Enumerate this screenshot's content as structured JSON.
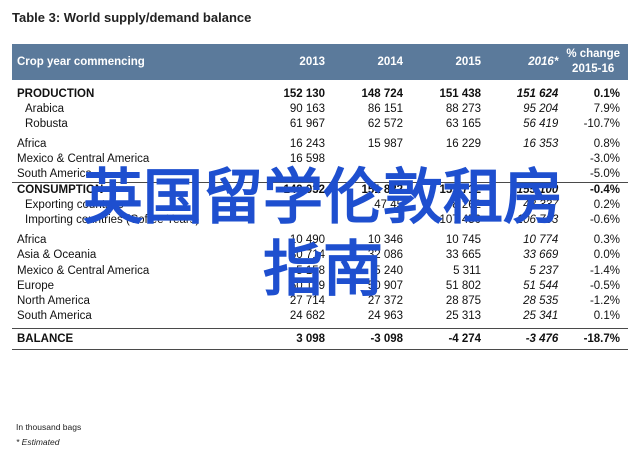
{
  "title": "Table 3: World supply/demand balance",
  "header": {
    "first": "Crop year commencing",
    "cols": [
      "2013",
      "2014",
      "2015",
      "2016*"
    ],
    "pct_line1": "% change",
    "pct_line2": "2015-16"
  },
  "rows": [
    {
      "label": "PRODUCTION",
      "values": [
        "152 130",
        "148 724",
        "151 438",
        "151 624",
        "0.1%"
      ]
    },
    {
      "label": "Arabica",
      "values": [
        "90 163",
        "86 151",
        "88 273",
        "95 204",
        "7.9%"
      ]
    },
    {
      "label": "Robusta",
      "values": [
        "61 967",
        "62 572",
        "63 165",
        "56 419",
        "-10.7%"
      ]
    },
    {
      "label": "Africa",
      "values": [
        "16 243",
        "15 987",
        "16 229",
        "16 353",
        "0.8%"
      ]
    },
    {
      "label": "Mexico & Central America",
      "values": [
        "16 598",
        "",
        "",
        "",
        "-3.0%"
      ]
    },
    {
      "label": "South America",
      "values": [
        "",
        "",
        "",
        "",
        "-5.0%"
      ]
    },
    {
      "label": "CONSUMPTION",
      "values": [
        "149 032",
        "151 822",
        "155 712",
        "155 100",
        "-0.4%"
      ]
    },
    {
      "label": "Exporting countries",
      "values": [
        "",
        "47 45",
        "48 262",
        "48 337",
        "0.2%"
      ]
    },
    {
      "label": "Importing countries (Coffee Years)",
      "values": [
        "",
        "",
        "107 450",
        "106 763",
        "-0.6%"
      ]
    },
    {
      "label": "Africa",
      "values": [
        "10 490",
        "10 346",
        "10 745",
        "10 774",
        "0.3%"
      ]
    },
    {
      "label": "Asia & Oceania",
      "values": [
        "30 714",
        "32 086",
        "33 665",
        "33 669",
        "0.0%"
      ]
    },
    {
      "label": "Mexico & Central America",
      "values": [
        "5 158",
        "5 240",
        "5 311",
        "5 237",
        "-1.4%"
      ]
    },
    {
      "label": "Europe",
      "values": [
        "50 169",
        "50 907",
        "51 802",
        "51 544",
        "-0.5%"
      ]
    },
    {
      "label": "North America",
      "values": [
        "27 714",
        "27 372",
        "28 875",
        "28 535",
        "-1.2%"
      ]
    },
    {
      "label": "South America",
      "values": [
        "24 682",
        "24 963",
        "25 313",
        "25 341",
        "0.1%"
      ]
    },
    {
      "label": "BALANCE",
      "values": [
        "3 098",
        "-3 098",
        "-4 274",
        "-3 476",
        "-18.7%"
      ]
    }
  ],
  "footnotes": [
    "In thousand bags",
    "* Estimated"
  ],
  "watermark": {
    "line1": "英国留学伦敦租房",
    "line2": "指南"
  }
}
